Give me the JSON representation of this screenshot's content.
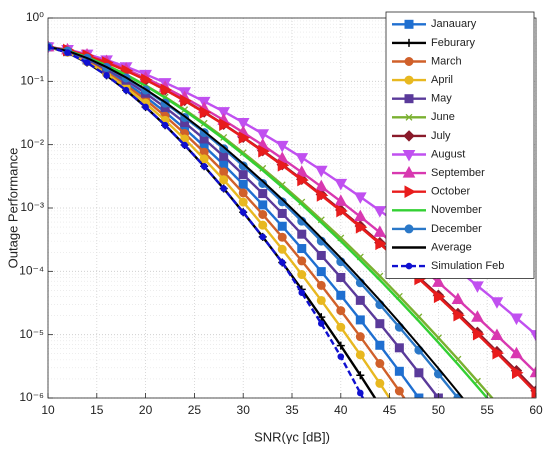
{
  "chart_data": {
    "type": "line",
    "xlabel": "SNR(γc [dB])",
    "ylabel": "Outage Performance",
    "x": [
      10,
      12,
      14,
      16,
      18,
      20,
      22,
      24,
      26,
      28,
      30,
      32,
      34,
      36,
      38,
      40,
      42,
      44,
      46,
      48,
      50,
      52,
      54,
      56,
      58,
      60
    ],
    "xlim": [
      10,
      60
    ],
    "xticks": [
      10,
      15,
      20,
      25,
      30,
      35,
      40,
      45,
      50,
      55,
      60
    ],
    "ylim": [
      1e-06,
      1
    ],
    "yticks": [
      {
        "value": 1e-06,
        "label": "10⁻⁶"
      },
      {
        "value": 1e-05,
        "label": "10⁻⁵"
      },
      {
        "value": 0.0001,
        "label": "10⁻⁴"
      },
      {
        "value": 0.001,
        "label": "10⁻³"
      },
      {
        "value": 0.01,
        "label": "10⁻²"
      },
      {
        "value": 0.1,
        "label": "10⁻¹"
      },
      {
        "value": 1,
        "label": "10⁰"
      }
    ],
    "log_y": true,
    "grid": true,
    "legend": "upper right",
    "series": [
      {
        "name": "Janauary",
        "color": "#1f6fd0",
        "marker": "square",
        "values": [
          0.35,
          0.294,
          0.217,
          0.148,
          0.0944,
          0.057,
          0.0327,
          0.018,
          0.00946,
          0.00483,
          0.00236,
          0.00112,
          0.000515,
          0.000229,
          9.9e-05,
          4.18e-05,
          1.71e-05,
          6.8e-06,
          2.64e-06,
          1e-06,
          3.7e-07,
          null,
          null,
          null,
          null,
          null
        ]
      },
      {
        "name": "Feburary",
        "color": "#000000",
        "marker": "plus",
        "values": [
          0.35,
          0.284,
          0.197,
          0.124,
          0.0724,
          0.0394,
          0.0203,
          0.00986,
          0.00456,
          0.00203,
          0.000855,
          0.00035,
          0.000138,
          5.18e-05,
          1.89e-05,
          6.7e-06,
          2.29e-06,
          7.6e-07,
          null,
          null,
          null,
          null,
          null,
          null,
          null,
          null
        ]
      },
      {
        "name": "March",
        "color": "#d0602a",
        "marker": "circle",
        "values": [
          0.35,
          0.291,
          0.211,
          0.14,
          0.0871,
          0.0511,
          0.0283,
          0.015,
          0.0076,
          0.00372,
          0.00173,
          0.00079,
          0.000346,
          0.000146,
          6e-05,
          2.4e-05,
          9.3e-06,
          3.5e-06,
          1.29e-06,
          4.6e-07,
          null,
          null,
          null,
          null,
          null,
          null
        ]
      },
      {
        "name": "April",
        "color": "#e8b820",
        "marker": "circle",
        "values": [
          0.35,
          0.288,
          0.204,
          0.132,
          0.0798,
          0.0452,
          0.0242,
          0.0123,
          0.00596,
          0.00279,
          0.00124,
          0.000536,
          0.000223,
          8.9e-05,
          3.47e-05,
          1.31e-05,
          4.8e-06,
          1.7e-06,
          5.8e-07,
          null,
          null,
          null,
          null,
          null,
          null,
          null
        ]
      },
      {
        "name": "May",
        "color": "#5a3a9a",
        "marker": "square",
        "values": [
          0.35,
          0.298,
          0.225,
          0.157,
          0.104,
          0.0649,
          0.0388,
          0.0223,
          0.0123,
          0.00656,
          0.00337,
          0.00169,
          0.00082,
          0.000386,
          0.000178,
          8e-05,
          3.48e-05,
          1.49e-05,
          6.2e-06,
          2.5e-06,
          1e-06,
          3.9e-07,
          null,
          null,
          null,
          null
        ]
      },
      {
        "name": "June",
        "color": "#7ab030",
        "marker": "x",
        "values": [
          0.35,
          0.306,
          0.243,
          0.18,
          0.128,
          0.0867,
          0.0566,
          0.0357,
          0.0218,
          0.013,
          0.00746,
          0.00422,
          0.00232,
          0.00124,
          0.00065,
          0.000337,
          0.000169,
          8.4e-05,
          4.03e-05,
          1.91e-05,
          8.9e-06,
          4.1e-06,
          1.84e-06,
          8.2e-07,
          null,
          null
        ]
      },
      {
        "name": "July",
        "color": "#8a1a2a",
        "marker": "diamond",
        "values": [
          0.35,
          0.313,
          0.256,
          0.199,
          0.148,
          0.106,
          0.074,
          0.0499,
          0.0327,
          0.021,
          0.0131,
          0.00805,
          0.00484,
          0.00284,
          0.00164,
          0.00093,
          0.00052,
          0.000284,
          0.000152,
          8e-05,
          4.2e-05,
          2.16e-05,
          1.09e-05,
          5.4e-06,
          2.7e-06,
          1.3e-06
        ]
      },
      {
        "name": "August",
        "color": "#c050f0",
        "marker": "tri-down",
        "values": [
          0.35,
          0.318,
          0.269,
          0.218,
          0.17,
          0.129,
          0.0953,
          0.0686,
          0.0482,
          0.0333,
          0.0224,
          0.0149,
          0.00973,
          0.00624,
          0.00394,
          0.00245,
          0.0015,
          0.00091,
          0.00054,
          0.000316,
          0.000183,
          0.000105,
          5.9e-05,
          3.31e-05,
          1.83e-05,
          1e-05
        ]
      },
      {
        "name": "September",
        "color": "#d838b0",
        "marker": "tri-up",
        "values": [
          0.35,
          0.314,
          0.26,
          0.205,
          0.155,
          0.113,
          0.0802,
          0.0552,
          0.0371,
          0.0244,
          0.0156,
          0.00982,
          0.00605,
          0.00366,
          0.00217,
          0.00127,
          0.00073,
          0.000412,
          0.000228,
          0.000125,
          6.7e-05,
          3.59e-05,
          1.88e-05,
          9.7e-06,
          5e-06,
          2.5e-06
        ]
      },
      {
        "name": "October",
        "color": "#e81c1c",
        "marker": "tri-right",
        "values": [
          0.35,
          0.312,
          0.255,
          0.198,
          0.147,
          0.106,
          0.0733,
          0.0493,
          0.0323,
          0.0207,
          0.0129,
          0.00787,
          0.00472,
          0.00276,
          0.00158,
          0.000897,
          0.000497,
          0.000272,
          0.000145,
          7.6e-05,
          3.97e-05,
          2.03e-05,
          1.02e-05,
          5.1e-06,
          2.5e-06,
          1.2e-06
        ]
      },
      {
        "name": "November",
        "color": "#33d033",
        "marker": "none",
        "values": [
          0.35,
          0.305,
          0.241,
          0.179,
          0.126,
          0.0847,
          0.055,
          0.0344,
          0.0208,
          0.0123,
          0.00702,
          0.00393,
          0.00214,
          0.00114,
          0.00059,
          0.0003,
          0.000149,
          7.3e-05,
          3.48e-05,
          1.63e-05,
          7.5e-06,
          3.4e-06,
          1.51e-06,
          6.6e-07,
          null,
          null
        ]
      },
      {
        "name": "December",
        "color": "#2a78c8",
        "marker": "circle",
        "values": [
          0.35,
          0.301,
          0.232,
          0.166,
          0.113,
          0.0729,
          0.0452,
          0.0269,
          0.0155,
          0.00863,
          0.00463,
          0.00244,
          0.00125,
          0.00062,
          0.0003,
          0.000142,
          6.6e-05,
          2.98e-05,
          1.31e-05,
          5.7e-06,
          2.4e-06,
          1e-06,
          4.1e-07,
          null,
          null,
          null
        ]
      },
      {
        "name": "Average",
        "color": "#000000",
        "marker": "none",
        "values": [
          0.35,
          0.302,
          0.233,
          0.168,
          0.115,
          0.0748,
          0.0468,
          0.0281,
          0.0163,
          0.00918,
          0.00499,
          0.00265,
          0.00137,
          0.00069,
          0.000337,
          0.000162,
          7.6e-05,
          3.49e-05,
          1.56e-05,
          6.8e-06,
          2.94e-06,
          1.24e-06,
          5.1e-07,
          null,
          null,
          null
        ]
      },
      {
        "name": "Simulation Feb",
        "color": "#1010d0",
        "marker": "dot",
        "linestyle": "dashed",
        "values": [
          0.35,
          0.284,
          0.197,
          0.124,
          0.0724,
          0.0394,
          0.0203,
          0.00986,
          0.00456,
          0.00203,
          0.000855,
          0.00035,
          0.000138,
          4.6e-05,
          1.5e-05,
          4.5e-06,
          1.2e-06,
          3e-07,
          null,
          null,
          null,
          null,
          null,
          null,
          null,
          null
        ]
      }
    ]
  }
}
